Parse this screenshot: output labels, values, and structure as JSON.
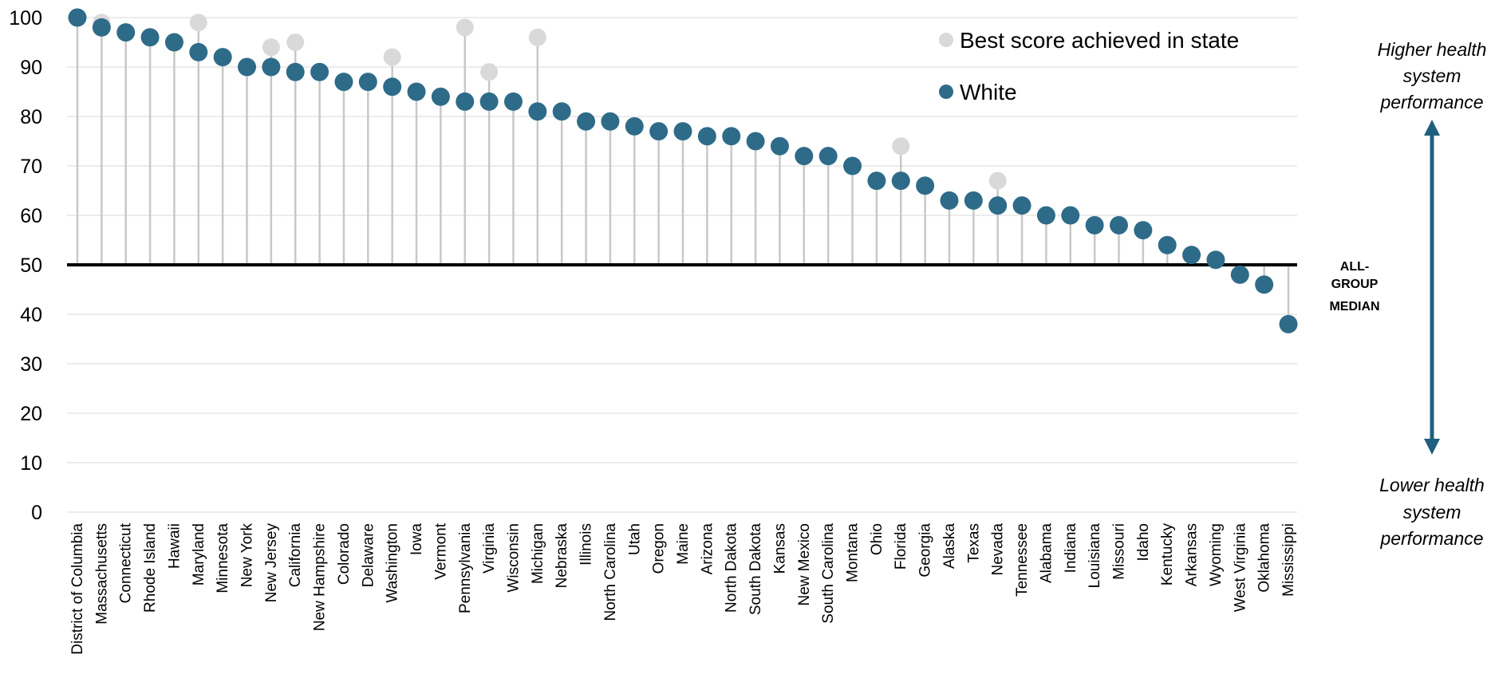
{
  "chart_data": {
    "type": "scatter",
    "subtype": "lollipop",
    "ylim": [
      0,
      100
    ],
    "yticks": [
      0,
      10,
      20,
      30,
      40,
      50,
      60,
      70,
      80,
      90,
      100
    ],
    "grid": true,
    "reference_line": {
      "value": 50,
      "label_lines": [
        "ALL-",
        "GROUP",
        "MEDIAN"
      ]
    },
    "legend": {
      "position": "top-right"
    },
    "categories": [
      "District of Columbia",
      "Massachusetts",
      "Connecticut",
      "Rhode Island",
      "Hawaii",
      "Maryland",
      "Minnesota",
      "New York",
      "New Jersey",
      "California",
      "New Hampshire",
      "Colorado",
      "Delaware",
      "Washington",
      "Iowa",
      "Vermont",
      "Pennsylvania",
      "Virginia",
      "Wisconsin",
      "Michigan",
      "Nebraska",
      "Illinois",
      "North Carolina",
      "Utah",
      "Oregon",
      "Maine",
      "Arizona",
      "North Dakota",
      "South Dakota",
      "Kansas",
      "New Mexico",
      "South Carolina",
      "Montana",
      "Ohio",
      "Florida",
      "Georgia",
      "Alaska",
      "Texas",
      "Nevada",
      "Tennessee",
      "Alabama",
      "Indiana",
      "Louisiana",
      "Missouri",
      "Idaho",
      "Kentucky",
      "Arkansas",
      "Wyoming",
      "West Virginia",
      "Oklahoma",
      "Mississippi"
    ],
    "series": [
      {
        "name": "Best score achieved in state",
        "color": "#d9d9d9",
        "values": [
          100,
          99,
          97,
          96,
          95,
          99,
          92,
          90,
          94,
          95,
          89,
          87,
          87,
          92,
          85,
          84,
          98,
          89,
          83,
          96,
          81,
          79,
          79,
          78,
          77,
          77,
          76,
          76,
          75,
          74,
          72,
          72,
          70,
          67,
          74,
          66,
          63,
          63,
          67,
          62,
          60,
          60,
          58,
          58,
          57,
          54,
          52,
          51,
          48,
          46,
          38
        ]
      },
      {
        "name": "White",
        "color": "#2e6b89",
        "values": [
          100,
          98,
          97,
          96,
          95,
          93,
          92,
          90,
          90,
          89,
          89,
          87,
          87,
          86,
          85,
          84,
          83,
          83,
          83,
          81,
          81,
          79,
          79,
          78,
          77,
          77,
          76,
          76,
          75,
          74,
          72,
          72,
          70,
          67,
          67,
          66,
          63,
          63,
          62,
          62,
          60,
          60,
          58,
          58,
          57,
          54,
          52,
          51,
          48,
          46,
          38
        ]
      }
    ],
    "annotations": {
      "top": [
        "Higher health",
        "system",
        "performance"
      ],
      "bottom": [
        "Lower health",
        "system",
        "performance"
      ],
      "arrow_color": "#1f5f80"
    }
  }
}
